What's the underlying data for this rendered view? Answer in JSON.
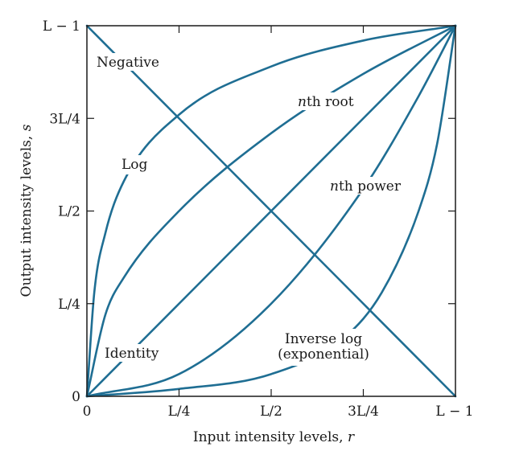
{
  "chart_data": {
    "type": "line",
    "xlabel_main": "Input intensity levels, ",
    "xlabel_var": "r",
    "ylabel_main": "Output intensity levels, ",
    "ylabel_var": "s",
    "xlim": [
      0,
      1
    ],
    "ylim": [
      0,
      1
    ],
    "grid": false,
    "x_ticks": [
      {
        "value": 0,
        "label": "0"
      },
      {
        "value": 0.25,
        "label": "L/4"
      },
      {
        "value": 0.5,
        "label": "L/2"
      },
      {
        "value": 0.75,
        "label": "3L/4"
      },
      {
        "value": 1,
        "label": "L − 1"
      }
    ],
    "y_ticks": [
      {
        "value": 0,
        "label": "0"
      },
      {
        "value": 0.25,
        "label": "L/4"
      },
      {
        "value": 0.5,
        "label": "L/2"
      },
      {
        "value": 0.75,
        "label": "3L/4"
      },
      {
        "value": 1,
        "label": "L − 1"
      }
    ],
    "series": [
      {
        "key": "negative",
        "name": "Negative",
        "x": [
          0,
          0.25,
          0.5,
          0.75,
          1
        ],
        "y": [
          1,
          0.75,
          0.5,
          0.25,
          0
        ]
      },
      {
        "key": "log",
        "name": "Log",
        "x": [
          0,
          0.02,
          0.05,
          0.1,
          0.25,
          0.5,
          0.75,
          1
        ],
        "y": [
          0,
          0.28,
          0.44,
          0.58,
          0.76,
          0.89,
          0.96,
          1
        ]
      },
      {
        "key": "nroot",
        "name": "nth root",
        "x": [
          0,
          0.05,
          0.1,
          0.25,
          0.5,
          0.75,
          1
        ],
        "y": [
          0,
          0.22,
          0.32,
          0.5,
          0.71,
          0.87,
          1
        ]
      },
      {
        "key": "identity",
        "name": "Identity",
        "x": [
          0,
          0.25,
          0.5,
          0.75,
          1
        ],
        "y": [
          0,
          0.25,
          0.5,
          0.75,
          1
        ]
      },
      {
        "key": "npower",
        "name": "nth power",
        "x": [
          0,
          0.25,
          0.5,
          0.75,
          0.9,
          1
        ],
        "y": [
          0,
          0.06,
          0.25,
          0.56,
          0.81,
          1
        ]
      },
      {
        "key": "invlog",
        "name": "Inverse log (exponential)",
        "x": [
          0,
          0.25,
          0.5,
          0.7,
          0.8,
          0.9,
          0.95,
          1
        ],
        "y": [
          0,
          0.02,
          0.06,
          0.16,
          0.28,
          0.5,
          0.68,
          1
        ]
      }
    ],
    "annotations": {
      "negative": "Negative",
      "log": "Log",
      "nroot_n": "n",
      "nroot_rest": "th root",
      "identity": "Identity",
      "npower_n": "n",
      "npower_rest": "th power",
      "invlog_1": "Inverse log",
      "invlog_2": "(exponential)"
    }
  }
}
